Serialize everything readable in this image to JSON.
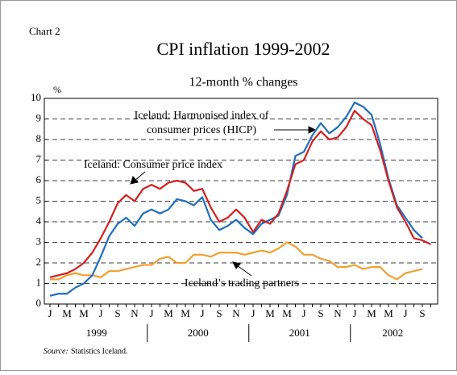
{
  "chart_data": {
    "type": "line",
    "chart_label": "Chart 2",
    "title": "CPI inflation 1999-2002",
    "subtitle": "12-month % changes",
    "y_unit": "%",
    "categories": [
      "J",
      null,
      "M",
      null,
      "M",
      null,
      "J",
      null,
      "S",
      null,
      "N",
      null,
      "J",
      null,
      "M",
      null,
      "M",
      null,
      "J",
      null,
      "S",
      null,
      "N",
      null,
      "J",
      null,
      "M",
      null,
      "M",
      null,
      "J",
      null,
      "S",
      null,
      "N",
      null,
      "J",
      null,
      "M",
      null,
      "M",
      null,
      "J",
      null,
      "S",
      null
    ],
    "x_groups": [
      "1999",
      "2000",
      "2001",
      "2002"
    ],
    "ylim": [
      0,
      10
    ],
    "yticks": [
      0,
      1,
      2,
      3,
      4,
      5,
      6,
      7,
      8,
      9,
      10
    ],
    "grid": true,
    "series": [
      {
        "name": "Iceland: Harmonised index of consumer prices (HICP)",
        "color": "#1f6fc0",
        "values": [
          0.4,
          0.5,
          0.5,
          0.8,
          1.0,
          1.4,
          2.3,
          3.3,
          3.9,
          4.2,
          3.8,
          4.4,
          4.6,
          4.4,
          4.6,
          5.1,
          5.0,
          4.8,
          5.2,
          4.1,
          3.6,
          3.8,
          4.1,
          3.7,
          3.4,
          3.9,
          4.1,
          4.3,
          5.3,
          7.2,
          7.4,
          8.2,
          8.8,
          8.3,
          8.6,
          9.1,
          9.8,
          9.6,
          9.2,
          7.8,
          6.1,
          4.8,
          4.2,
          3.6,
          3.2,
          null
        ]
      },
      {
        "name": "Iceland: Consumer price index",
        "color": "#d42020",
        "values": [
          1.3,
          1.4,
          1.5,
          1.7,
          2.0,
          2.5,
          3.2,
          4.0,
          4.9,
          5.3,
          5.0,
          5.6,
          5.8,
          5.6,
          5.9,
          6.0,
          5.9,
          5.5,
          5.6,
          4.7,
          4.0,
          4.2,
          4.6,
          4.2,
          3.5,
          4.1,
          3.9,
          4.4,
          5.5,
          6.8,
          7.0,
          7.9,
          8.4,
          8.0,
          8.1,
          8.6,
          9.4,
          9.0,
          8.7,
          7.5,
          6.0,
          4.7,
          4.0,
          3.2,
          3.1,
          2.9
        ]
      },
      {
        "name": "Iceland’s trading partners",
        "color": "#f0a030",
        "values": [
          1.2,
          1.2,
          1.4,
          1.5,
          1.4,
          1.4,
          1.3,
          1.6,
          1.6,
          1.7,
          1.8,
          1.9,
          1.9,
          2.2,
          2.3,
          2.0,
          2.0,
          2.4,
          2.4,
          2.3,
          2.5,
          2.5,
          2.5,
          2.4,
          2.5,
          2.6,
          2.5,
          2.7,
          3.0,
          2.8,
          2.4,
          2.4,
          2.2,
          2.1,
          1.8,
          1.8,
          1.9,
          1.7,
          1.8,
          1.8,
          1.4,
          1.2,
          1.5,
          1.6,
          1.7,
          null
        ]
      }
    ],
    "annotations": [
      "Iceland: Harmonised index of",
      "consumer prices (HICP)"
    ],
    "source_label": "Source:",
    "source": "Statistics Iceland."
  }
}
